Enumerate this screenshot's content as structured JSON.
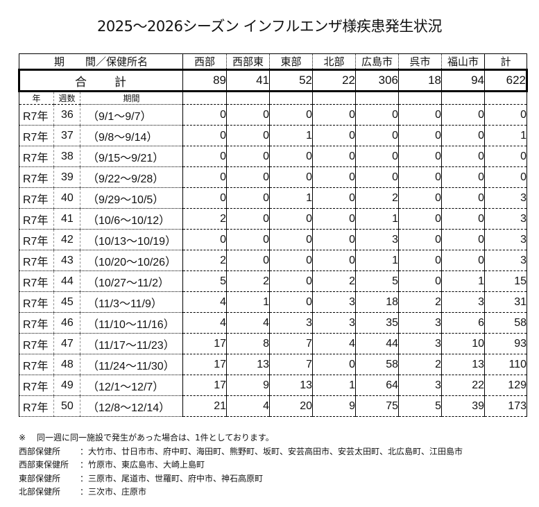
{
  "title": "2025～2026シーズン インフルエンザ様疾患発生状況",
  "table": {
    "header": {
      "period_label": "期　　間／保健所名",
      "columns": [
        "西部",
        "西部東",
        "東部",
        "北部",
        "広島市",
        "呉市",
        "福山市",
        "計"
      ]
    },
    "total_row": {
      "label": "合　　計",
      "values": [
        89,
        41,
        52,
        22,
        306,
        18,
        94,
        622
      ]
    },
    "subheader": {
      "year": "年",
      "week": "週数",
      "period": "期間"
    },
    "rows": [
      {
        "year": "R7年",
        "week": "36",
        "period": "（9/1～9/7）",
        "values": [
          0,
          0,
          0,
          0,
          0,
          0,
          0,
          0
        ]
      },
      {
        "year": "R7年",
        "week": "37",
        "period": "（9/8～9/14）",
        "values": [
          0,
          0,
          1,
          0,
          0,
          0,
          0,
          1
        ]
      },
      {
        "year": "R7年",
        "week": "38",
        "period": "（9/15～9/21）",
        "values": [
          0,
          0,
          0,
          0,
          0,
          0,
          0,
          0
        ]
      },
      {
        "year": "R7年",
        "week": "39",
        "period": "（9/22～9/28）",
        "values": [
          0,
          0,
          0,
          0,
          0,
          0,
          0,
          0
        ]
      },
      {
        "year": "R7年",
        "week": "40",
        "period": "（9/29～10/5）",
        "values": [
          0,
          0,
          1,
          0,
          2,
          0,
          0,
          3
        ]
      },
      {
        "year": "R7年",
        "week": "41",
        "period": "（10/6～10/12）",
        "values": [
          2,
          0,
          0,
          0,
          1,
          0,
          0,
          3
        ]
      },
      {
        "year": "R7年",
        "week": "42",
        "period": "（10/13～10/19）",
        "values": [
          0,
          0,
          0,
          0,
          3,
          0,
          0,
          3
        ]
      },
      {
        "year": "R7年",
        "week": "43",
        "period": "（10/20～10/26）",
        "values": [
          2,
          0,
          0,
          0,
          1,
          0,
          0,
          3
        ]
      },
      {
        "year": "R7年",
        "week": "44",
        "period": "（10/27～11/2）",
        "values": [
          5,
          2,
          0,
          2,
          5,
          0,
          1,
          15
        ]
      },
      {
        "year": "R7年",
        "week": "45",
        "period": "（11/3～11/9）",
        "values": [
          4,
          1,
          0,
          3,
          18,
          2,
          3,
          31
        ]
      },
      {
        "year": "R7年",
        "week": "46",
        "period": "（11/10～11/16）",
        "values": [
          4,
          4,
          3,
          3,
          35,
          3,
          6,
          58
        ]
      },
      {
        "year": "R7年",
        "week": "47",
        "period": "（11/17～11/23）",
        "values": [
          17,
          8,
          7,
          4,
          44,
          3,
          10,
          93
        ]
      },
      {
        "year": "R7年",
        "week": "48",
        "period": "（11/24～11/30）",
        "values": [
          17,
          13,
          7,
          0,
          58,
          2,
          13,
          110
        ]
      },
      {
        "year": "R7年",
        "week": "49",
        "period": "（12/1～12/7）",
        "values": [
          17,
          9,
          13,
          1,
          64,
          3,
          22,
          129
        ]
      },
      {
        "year": "R7年",
        "week": "50",
        "period": "（12/8～12/14）",
        "values": [
          21,
          4,
          20,
          9,
          75,
          5,
          39,
          173
        ]
      }
    ]
  },
  "notes": {
    "mark": "※",
    "footnote": "同一週に同一施設で発生があった場合は、1件としております。",
    "districts": [
      {
        "label": "西部保健所",
        "areas": "：大竹市、廿日市市、府中町、海田町、熊野町、坂町、安芸高田市、安芸太田町、北広島町、江田島市"
      },
      {
        "label": "西部東保健所",
        "areas": "：竹原市、東広島市、大崎上島町"
      },
      {
        "label": "東部保健所",
        "areas": "：三原市、尾道市、世羅町、府中市、神石高原町"
      },
      {
        "label": "北部保健所",
        "areas": "：三次市、庄原市"
      }
    ]
  }
}
